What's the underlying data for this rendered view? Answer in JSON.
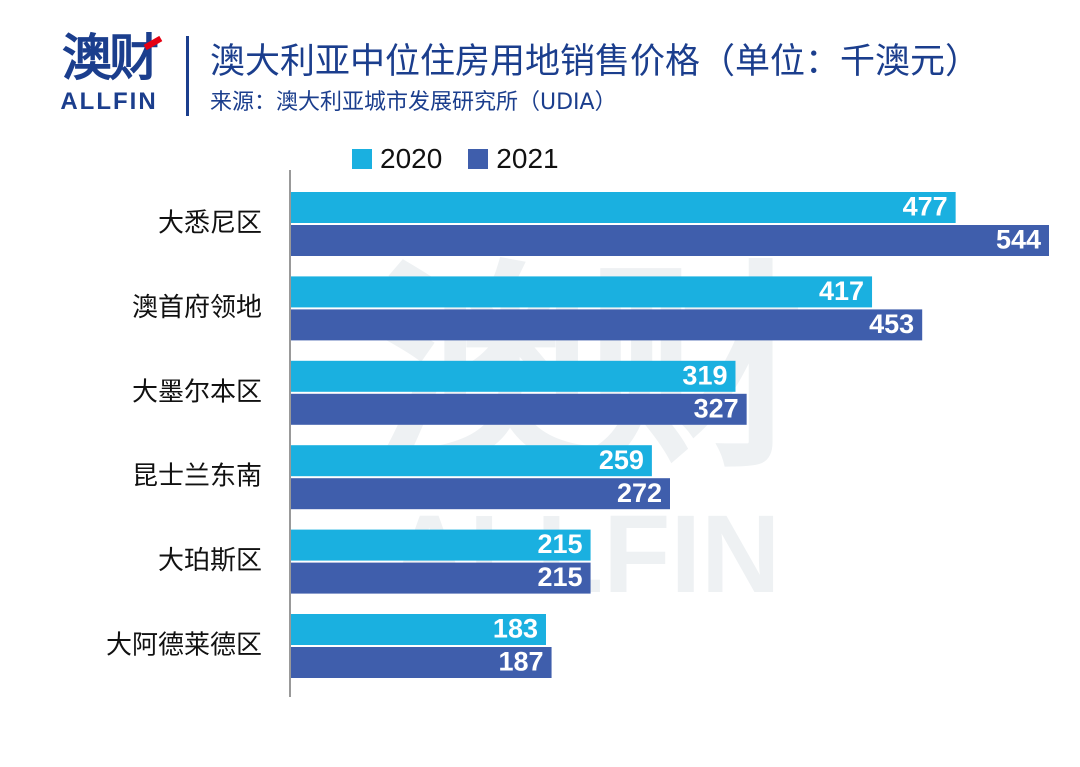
{
  "logo": {
    "cn": "澳财",
    "en": "ALLFIN"
  },
  "title": "澳大利亚中位住房用地销售价格（单位：千澳元）",
  "subtitle": "来源：澳大利亚城市发展研究所（UDIA）",
  "watermark": {
    "cn": "澳财",
    "en": "ALLFIN"
  },
  "colors": {
    "s2020": "#1ab0e0",
    "s2021": "#3f5eac",
    "axis": "#999999",
    "brand": "#1b3e8d"
  },
  "chart_data": {
    "type": "bar",
    "orientation": "horizontal",
    "categories": [
      "大悉尼区",
      "澳首府领地",
      "大墨尔本区",
      "昆士兰东南",
      "大珀斯区",
      "大阿德莱德区"
    ],
    "series": [
      {
        "name": "2020",
        "values": [
          477,
          417,
          319,
          259,
          215,
          183
        ]
      },
      {
        "name": "2021",
        "values": [
          544,
          453,
          327,
          272,
          215,
          187
        ]
      }
    ],
    "xlim": [
      0,
      544
    ],
    "grid": false,
    "legend": "top",
    "data_labels": true
  }
}
